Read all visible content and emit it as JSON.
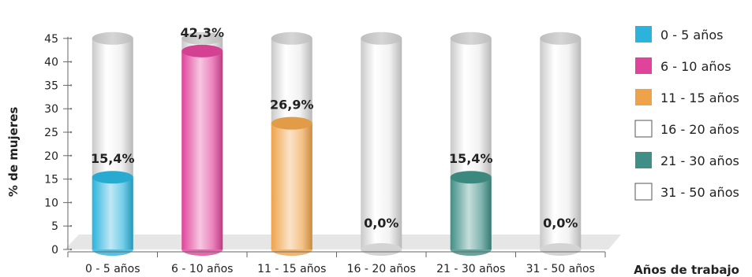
{
  "chart_data": {
    "type": "bar",
    "categories": [
      "0 - 5 años",
      "6 - 10 años",
      "11 - 15 años",
      "16 - 20 años",
      "21 - 30 años",
      "31 - 50 años"
    ],
    "values": [
      15.4,
      42.3,
      26.9,
      0.0,
      15.4,
      0.0
    ],
    "data_labels": [
      "15,4%",
      "42,3%",
      "26,9%",
      "0,0%",
      "15,4%",
      "0,0%"
    ],
    "colors": [
      "#2bb3dc",
      "#e0449a",
      "#eea34a",
      "#ffffff",
      "#3f8f86",
      "#ffffff"
    ],
    "ylabel": "% de mujeres",
    "xlabel": "Años de trabajo",
    "ylim": [
      0,
      45
    ],
    "yticks": [
      "0",
      "5",
      "10",
      "15",
      "20",
      "25",
      "30",
      "35",
      "40",
      "45"
    ],
    "legend": {
      "position": "right",
      "entries": [
        "0 - 5 años",
        "6 - 10 años",
        "11 - 15 años",
        "16 - 20 años",
        "21 - 30 años",
        "31 - 50 años"
      ]
    },
    "style": "3d-cylinder"
  }
}
